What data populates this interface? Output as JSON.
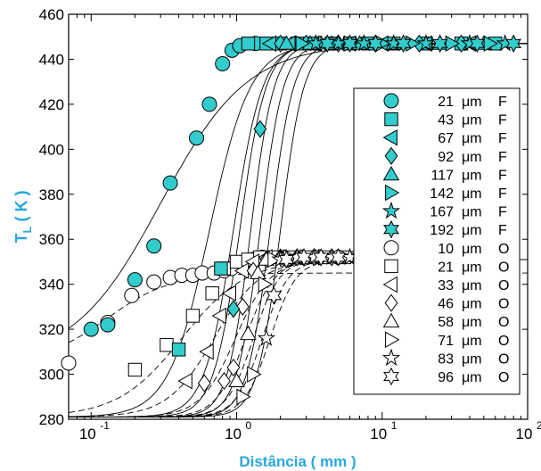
{
  "chart_data": {
    "type": "scatter",
    "xlabel": "Distância ( mm )",
    "ylabel_main": "T",
    "ylabel_sub": "L",
    "ylabel_unit": " ( K )",
    "xscale": "log",
    "xlim": [
      0.07,
      100
    ],
    "ylim": [
      280,
      460
    ],
    "yticks": [
      280,
      300,
      320,
      340,
      360,
      380,
      400,
      420,
      440,
      460
    ],
    "xticks": [
      {
        "value": 0.1,
        "base": "10",
        "exp": "-1"
      },
      {
        "value": 1,
        "base": "10",
        "exp": "0"
      },
      {
        "value": 10,
        "base": "10",
        "exp": "1"
      },
      {
        "value": 100,
        "base": "10",
        "exp": "2"
      }
    ],
    "legend_position": "right",
    "unit_symbol": "μm",
    "label_color": "#2aa7e0",
    "fill_color": "#33cccc",
    "series": [
      {
        "name": "21",
        "suffix": "F",
        "marker": "circle",
        "filled": true,
        "x0": 0.07,
        "y0": 305,
        "mid": 0.3,
        "w": 0.3,
        "ymax": 447,
        "points": [
          [
            0.1,
            320
          ],
          [
            0.13,
            322
          ],
          [
            0.2,
            342
          ],
          [
            0.27,
            357
          ],
          [
            0.35,
            385
          ],
          [
            0.53,
            405
          ],
          [
            0.65,
            420
          ],
          [
            0.8,
            438
          ],
          [
            0.93,
            444
          ],
          [
            1.05,
            446
          ],
          [
            1.35,
            447
          ]
        ]
      },
      {
        "name": "43",
        "suffix": "F",
        "marker": "square",
        "filled": true,
        "x0": 0.07,
        "y0": 282,
        "mid": 0.65,
        "w": 0.14,
        "ymax": 447,
        "points": [
          [
            0.4,
            311
          ],
          [
            0.78,
            347
          ],
          [
            1.2,
            447
          ],
          [
            1.6,
            447
          ],
          [
            2.0,
            447
          ],
          [
            2.6,
            447
          ],
          [
            3.3,
            447
          ],
          [
            4.5,
            447
          ],
          [
            6,
            447
          ],
          [
            8,
            447
          ],
          [
            12,
            447
          ],
          [
            20,
            447
          ],
          [
            35,
            447
          ],
          [
            60,
            447
          ]
        ]
      },
      {
        "name": "67",
        "suffix": "F",
        "marker": "left",
        "filled": true,
        "x0": 0.07,
        "y0": 282,
        "mid": 0.95,
        "w": 0.1,
        "ymax": 447,
        "points": [
          [
            1.7,
            447
          ],
          [
            2.3,
            447
          ],
          [
            3.5,
            447
          ],
          [
            6,
            447
          ],
          [
            10,
            447
          ],
          [
            20,
            447
          ],
          [
            40,
            447
          ]
        ]
      },
      {
        "name": "92",
        "suffix": "F",
        "marker": "diamond",
        "filled": true,
        "x0": 0.07,
        "y0": 282,
        "mid": 1.05,
        "w": 0.09,
        "ymax": 447,
        "points": [
          [
            0.95,
            329
          ],
          [
            1.45,
            409
          ],
          [
            2.0,
            447
          ],
          [
            3.0,
            447
          ],
          [
            5,
            447
          ],
          [
            9,
            447
          ],
          [
            18,
            447
          ],
          [
            35,
            447
          ]
        ]
      },
      {
        "name": "117",
        "suffix": "F",
        "marker": "up",
        "filled": true,
        "x0": 0.07,
        "y0": 282,
        "mid": 1.25,
        "w": 0.08,
        "ymax": 447,
        "points": [
          [
            2.2,
            447
          ],
          [
            3.2,
            447
          ],
          [
            4.5,
            447
          ],
          [
            7,
            447
          ],
          [
            12,
            447
          ],
          [
            25,
            447
          ],
          [
            50,
            447
          ]
        ]
      },
      {
        "name": "142",
        "suffix": "F",
        "marker": "right",
        "filled": true,
        "x0": 0.07,
        "y0": 282,
        "mid": 1.45,
        "w": 0.08,
        "ymax": 447,
        "points": [
          [
            2.8,
            447
          ],
          [
            4,
            447
          ],
          [
            6,
            447
          ],
          [
            10,
            447
          ],
          [
            16,
            447
          ],
          [
            30,
            447
          ],
          [
            55,
            447
          ]
        ]
      },
      {
        "name": "167",
        "suffix": "F",
        "marker": "star",
        "filled": true,
        "x0": 0.07,
        "y0": 282,
        "mid": 1.7,
        "w": 0.08,
        "ymax": 447,
        "points": [
          [
            3.5,
            447
          ],
          [
            5,
            447
          ],
          [
            7.5,
            447
          ],
          [
            12,
            447
          ],
          [
            20,
            447
          ],
          [
            40,
            447
          ],
          [
            70,
            447
          ]
        ]
      },
      {
        "name": "192",
        "suffix": "F",
        "marker": "hexagram",
        "filled": true,
        "x0": 0.07,
        "y0": 282,
        "mid": 2.0,
        "w": 0.08,
        "ymax": 447,
        "points": [
          [
            4.2,
            447
          ],
          [
            6,
            447
          ],
          [
            9,
            447
          ],
          [
            14,
            447
          ],
          [
            25,
            447
          ],
          [
            45,
            447
          ],
          [
            80,
            447
          ]
        ]
      },
      {
        "name": "10",
        "suffix": "O",
        "marker": "circle",
        "filled": false,
        "x0": 0.07,
        "y0": 305,
        "mid": 0.13,
        "w": 0.22,
        "ymax": 345,
        "points": [
          [
            0.07,
            305
          ],
          [
            0.13,
            323
          ],
          [
            0.19,
            335
          ],
          [
            0.27,
            341
          ],
          [
            0.35,
            343
          ],
          [
            0.42,
            344
          ],
          [
            0.5,
            344
          ],
          [
            0.58,
            345
          ],
          [
            0.7,
            345
          ],
          [
            0.82,
            346
          ],
          [
            0.92,
            347
          ],
          [
            1.1,
            349
          ],
          [
            1.3,
            351
          ],
          [
            1.5,
            352
          ]
        ]
      },
      {
        "name": "21",
        "suffix": "O",
        "marker": "square",
        "filled": false,
        "x0": 0.07,
        "y0": 282,
        "mid": 0.42,
        "w": 0.22,
        "ymax": 351,
        "points": [
          [
            0.2,
            302
          ],
          [
            0.33,
            313
          ],
          [
            0.5,
            326
          ],
          [
            0.68,
            336
          ],
          [
            0.82,
            347
          ],
          [
            1.0,
            350
          ],
          [
            1.2,
            351
          ],
          [
            1.45,
            352
          ],
          [
            1.8,
            352
          ],
          [
            2.3,
            352
          ],
          [
            3.0,
            352
          ],
          [
            4.0,
            352
          ],
          [
            5.5,
            352
          ],
          [
            7.5,
            352
          ]
        ]
      },
      {
        "name": "33",
        "suffix": "O",
        "marker": "left",
        "filled": false,
        "x0": 0.07,
        "y0": 282,
        "mid": 0.7,
        "w": 0.16,
        "ymax": 351,
        "points": [
          [
            0.45,
            297
          ],
          [
            0.63,
            310
          ],
          [
            0.77,
            326
          ],
          [
            0.9,
            336
          ],
          [
            1.1,
            346
          ],
          [
            1.3,
            350
          ],
          [
            1.6,
            352
          ],
          [
            2.0,
            352
          ],
          [
            2.6,
            352
          ],
          [
            3.4,
            352
          ],
          [
            4.5,
            352
          ],
          [
            6,
            352
          ]
        ]
      },
      {
        "name": "46",
        "suffix": "O",
        "marker": "diamond",
        "filled": false,
        "x0": 0.07,
        "y0": 282,
        "mid": 0.98,
        "w": 0.12,
        "ymax": 351,
        "points": [
          [
            0.6,
            296
          ],
          [
            0.82,
            297
          ],
          [
            0.95,
            303
          ],
          [
            1.1,
            330
          ],
          [
            1.3,
            346
          ],
          [
            1.6,
            351
          ],
          [
            2.0,
            352
          ],
          [
            2.6,
            352
          ],
          [
            3.4,
            352
          ],
          [
            4.5,
            352
          ]
        ]
      },
      {
        "name": "58",
        "suffix": "O",
        "marker": "up",
        "filled": false,
        "x0": 0.07,
        "y0": 282,
        "mid": 1.15,
        "w": 0.1,
        "ymax": 351,
        "points": [
          [
            1.0,
            297
          ],
          [
            1.2,
            318
          ],
          [
            1.4,
            345
          ],
          [
            1.6,
            351
          ],
          [
            2.0,
            352
          ],
          [
            2.6,
            352
          ],
          [
            3.5,
            352
          ],
          [
            5,
            352
          ]
        ]
      },
      {
        "name": "71",
        "suffix": "O",
        "marker": "right",
        "filled": false,
        "x0": 0.07,
        "y0": 282,
        "mid": 1.3,
        "w": 0.09,
        "ymax": 351,
        "points": [
          [
            1.1,
            290
          ],
          [
            1.3,
            300
          ],
          [
            1.55,
            340
          ],
          [
            1.8,
            351
          ],
          [
            2.3,
            352
          ],
          [
            3,
            352
          ],
          [
            4,
            352
          ],
          [
            5.5,
            352
          ],
          [
            8,
            352
          ]
        ]
      },
      {
        "name": "83",
        "suffix": "O",
        "marker": "star",
        "filled": false,
        "x0": 0.07,
        "y0": 282,
        "mid": 1.5,
        "w": 0.09,
        "ymax": 351,
        "points": [
          [
            1.6,
            316
          ],
          [
            2.0,
            351
          ],
          [
            2.6,
            352
          ],
          [
            3.4,
            352
          ],
          [
            4.5,
            352
          ],
          [
            6,
            352
          ],
          [
            9,
            352
          ]
        ]
      },
      {
        "name": "96",
        "suffix": "O",
        "marker": "hexagram",
        "filled": false,
        "x0": 0.07,
        "y0": 282,
        "mid": 1.7,
        "w": 0.09,
        "ymax": 351,
        "points": [
          [
            1.8,
            335
          ],
          [
            2.2,
            351
          ],
          [
            2.9,
            352
          ],
          [
            3.8,
            352
          ],
          [
            5,
            352
          ],
          [
            7,
            352
          ],
          [
            10,
            352
          ]
        ]
      }
    ]
  }
}
